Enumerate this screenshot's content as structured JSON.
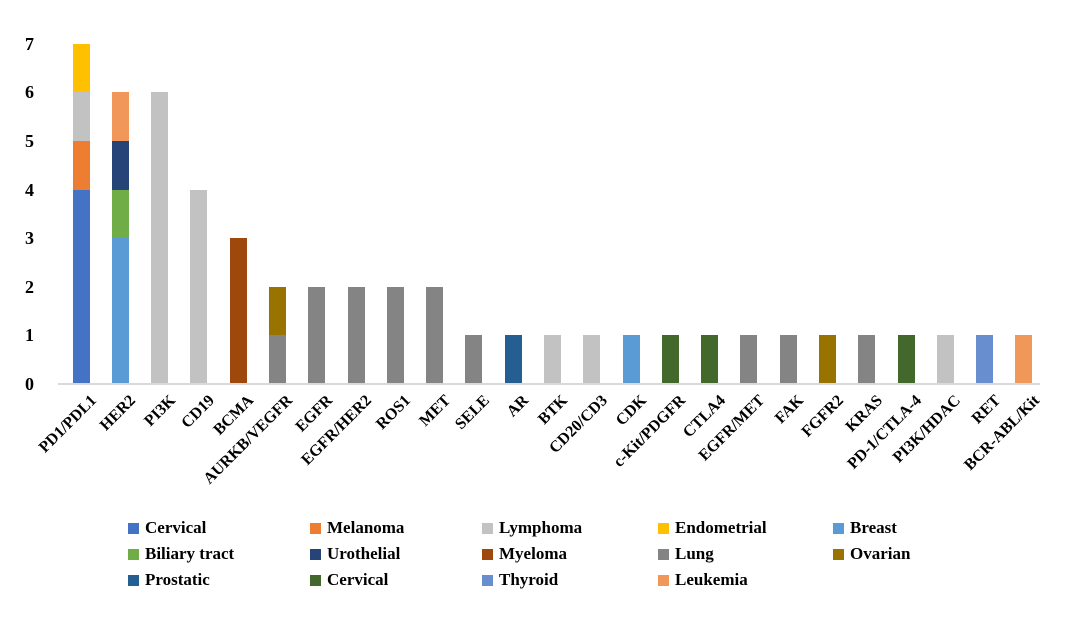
{
  "chart_data": {
    "type": "bar",
    "stacked": true,
    "title": "",
    "xlabel": "",
    "ylabel": "",
    "ylim": [
      0,
      7
    ],
    "yticks": [
      "0",
      "1",
      "2",
      "3",
      "4",
      "5",
      "6",
      "7"
    ],
    "grid": false,
    "legend_position": "bottom",
    "axis_line_color": "#d9d9d9",
    "series": [
      {
        "id": "cervical",
        "label": "Cervical",
        "color": "#4472C4"
      },
      {
        "id": "melanoma",
        "label": "Melanoma",
        "color": "#ED7D31"
      },
      {
        "id": "lymphoma",
        "label": "Lymphoma",
        "color": "#C2C2C2"
      },
      {
        "id": "endometrial",
        "label": "Endometrial",
        "color": "#FFC000"
      },
      {
        "id": "breast",
        "label": "Breast",
        "color": "#5B9BD5"
      },
      {
        "id": "biliary-tract",
        "label": "Biliary tract",
        "color": "#70AD47"
      },
      {
        "id": "urothelial",
        "label": "Urothelial",
        "color": "#264478"
      },
      {
        "id": "myeloma",
        "label": "Myeloma",
        "color": "#9E480E"
      },
      {
        "id": "lung",
        "label": "Lung",
        "color": "#848484"
      },
      {
        "id": "ovarian",
        "label": "Ovarian",
        "color": "#997300"
      },
      {
        "id": "prostatic",
        "label": "Prostatic",
        "color": "#255E91"
      },
      {
        "id": "cervical-2",
        "label": "Cervical",
        "color": "#43682B"
      },
      {
        "id": "thyroid",
        "label": "Thyroid",
        "color": "#698ED0"
      },
      {
        "id": "leukemia",
        "label": "Leukemia",
        "color": "#F1975A"
      }
    ],
    "categories": [
      "PD1/PDL1",
      "HER2",
      "PI3K",
      "CD19",
      "BCMA",
      "AURKB/VEGFR",
      "EGFR",
      "EGFR/HER2",
      "ROS1",
      "MET",
      "SELE",
      "AR",
      "BTK",
      "CD20/CD3",
      "CDK",
      "c-Kit/PDGFR",
      "CTLA4",
      "EGFR/MET",
      "FAK",
      "FGFR2",
      "KRAS",
      "PD-1/CTLA-4",
      "PI3K/HDAC",
      "RET",
      "BCR-ABL/Kit"
    ],
    "bars": [
      {
        "category": "PD1/PDL1",
        "total": 7,
        "segments": [
          {
            "series": "cervical",
            "value": 4
          },
          {
            "series": "melanoma",
            "value": 1
          },
          {
            "series": "lymphoma",
            "value": 1
          },
          {
            "series": "endometrial",
            "value": 1
          }
        ]
      },
      {
        "category": "HER2",
        "total": 6,
        "segments": [
          {
            "series": "breast",
            "value": 3
          },
          {
            "series": "biliary-tract",
            "value": 1
          },
          {
            "series": "urothelial",
            "value": 1
          },
          {
            "series": "leukemia",
            "value": 1
          }
        ]
      },
      {
        "category": "PI3K",
        "total": 6,
        "segments": [
          {
            "series": "lymphoma",
            "value": 6
          }
        ]
      },
      {
        "category": "CD19",
        "total": 4,
        "segments": [
          {
            "series": "lymphoma",
            "value": 4
          }
        ]
      },
      {
        "category": "BCMA",
        "total": 3,
        "segments": [
          {
            "series": "myeloma",
            "value": 3
          }
        ]
      },
      {
        "category": "AURKB/VEGFR",
        "total": 2,
        "segments": [
          {
            "series": "lung",
            "value": 1
          },
          {
            "series": "ovarian",
            "value": 1
          }
        ]
      },
      {
        "category": "EGFR",
        "total": 2,
        "segments": [
          {
            "series": "lung",
            "value": 2
          }
        ]
      },
      {
        "category": "EGFR/HER2",
        "total": 2,
        "segments": [
          {
            "series": "lung",
            "value": 2
          }
        ]
      },
      {
        "category": "ROS1",
        "total": 2,
        "segments": [
          {
            "series": "lung",
            "value": 2
          }
        ]
      },
      {
        "category": "MET",
        "total": 2,
        "segments": [
          {
            "series": "lung",
            "value": 2
          }
        ]
      },
      {
        "category": "SELE",
        "total": 1,
        "segments": [
          {
            "series": "lung",
            "value": 1
          }
        ]
      },
      {
        "category": "AR",
        "total": 1,
        "segments": [
          {
            "series": "prostatic",
            "value": 1
          }
        ]
      },
      {
        "category": "BTK",
        "total": 1,
        "segments": [
          {
            "series": "lymphoma",
            "value": 1
          }
        ]
      },
      {
        "category": "CD20/CD3",
        "total": 1,
        "segments": [
          {
            "series": "lymphoma",
            "value": 1
          }
        ]
      },
      {
        "category": "CDK",
        "total": 1,
        "segments": [
          {
            "series": "breast",
            "value": 1
          }
        ]
      },
      {
        "category": "c-Kit/PDGFR",
        "total": 1,
        "segments": [
          {
            "series": "cervical-2",
            "value": 1
          }
        ]
      },
      {
        "category": "CTLA4",
        "total": 1,
        "segments": [
          {
            "series": "cervical-2",
            "value": 1
          }
        ]
      },
      {
        "category": "EGFR/MET",
        "total": 1,
        "segments": [
          {
            "series": "lung",
            "value": 1
          }
        ]
      },
      {
        "category": "FAK",
        "total": 1,
        "segments": [
          {
            "series": "lung",
            "value": 1
          }
        ]
      },
      {
        "category": "FGFR2",
        "total": 1,
        "segments": [
          {
            "series": "ovarian",
            "value": 1
          }
        ]
      },
      {
        "category": "KRAS",
        "total": 1,
        "segments": [
          {
            "series": "lung",
            "value": 1
          }
        ]
      },
      {
        "category": "PD-1/CTLA-4",
        "total": 1,
        "segments": [
          {
            "series": "cervical-2",
            "value": 1
          }
        ]
      },
      {
        "category": "PI3K/HDAC",
        "total": 1,
        "segments": [
          {
            "series": "lymphoma",
            "value": 1
          }
        ]
      },
      {
        "category": "RET",
        "total": 1,
        "segments": [
          {
            "series": "thyroid",
            "value": 1
          }
        ]
      },
      {
        "category": "BCR-ABL/Kit",
        "total": 1,
        "segments": [
          {
            "series": "leukemia",
            "value": 1
          }
        ]
      }
    ],
    "legend_rows": [
      [
        "cervical",
        "melanoma",
        "lymphoma",
        "endometrial",
        "breast"
      ],
      [
        "biliary-tract",
        "urothelial",
        "myeloma",
        "lung",
        "ovarian"
      ],
      [
        "prostatic",
        "cervical-2",
        "thyroid",
        "leukemia"
      ]
    ]
  }
}
